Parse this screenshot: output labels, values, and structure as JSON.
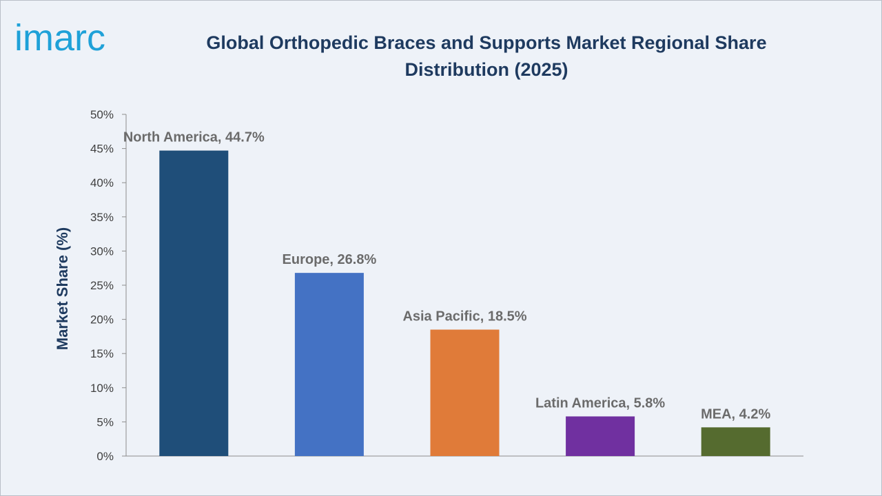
{
  "brand": {
    "name": "imarc",
    "color": "#1fa1d8"
  },
  "chart_data": {
    "type": "bar",
    "title": "Global Orthopedic Braces and Supports Market Regional Share Distribution (2025)",
    "xlabel": "",
    "ylabel": "Market Share (%)",
    "ylim": [
      0,
      50
    ],
    "yticks": [
      0,
      5,
      10,
      15,
      20,
      25,
      30,
      35,
      40,
      45,
      50
    ],
    "tick_suffix": "%",
    "grid": false,
    "legend": "none",
    "categories": [
      "North America",
      "Europe",
      "Asia Pacific",
      "Latin America",
      "MEA"
    ],
    "values": [
      44.7,
      26.8,
      18.5,
      5.8,
      4.2
    ],
    "data_labels": [
      "North America, 44.7%",
      "Europe, 26.8%",
      "Asia Pacific, 18.5%",
      "Latin America, 5.8%",
      "MEA, 4.2%"
    ],
    "colors": [
      "#1f4e79",
      "#4472c4",
      "#e07b39",
      "#7030a0",
      "#556b2f"
    ]
  }
}
